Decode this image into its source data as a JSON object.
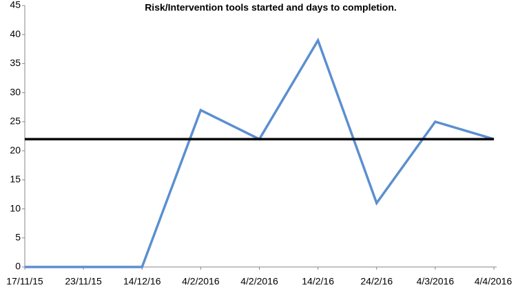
{
  "chart_data": {
    "type": "line",
    "title": "Risk/Intervention tools started and days to completion.",
    "categories": [
      "17/11/15",
      "23/11/15",
      "14/12/16",
      "4/2/2016",
      "4/2/2016",
      "14/2/16",
      "24/2/16",
      "4/3/2016",
      "4/4/2016"
    ],
    "values": [
      0,
      0,
      0,
      27,
      22,
      39,
      11,
      25,
      22
    ],
    "color": "#5b8fd0",
    "reference_value": 22,
    "reference_color": "#000000",
    "ylim": [
      0,
      45
    ],
    "yticks": [
      0,
      5,
      10,
      15,
      20,
      25,
      30,
      35,
      40,
      45
    ],
    "grid": false
  }
}
